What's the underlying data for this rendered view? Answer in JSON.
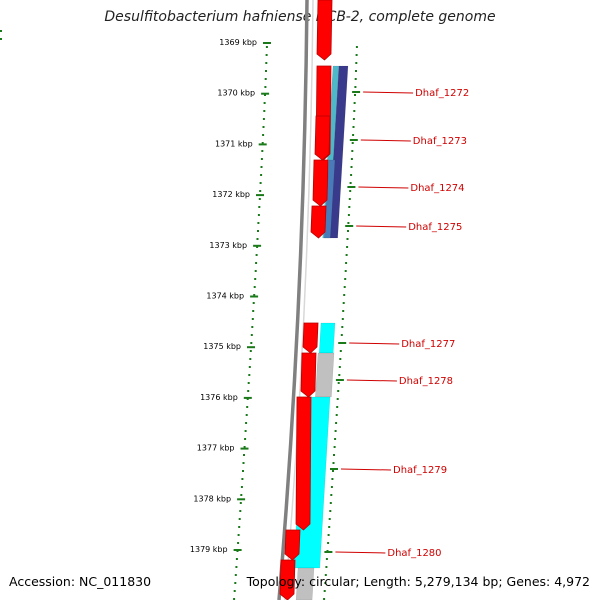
{
  "title": "Desulfitobacterium hafniense DCB-2, complete genome",
  "accession_text": "Accession: NC_011830",
  "summary_text": "Topology: circular; Length: 5,279,134 bp; Genes: 4,972",
  "ruler": {
    "unit": "kbp",
    "ticks": [
      "1369 kbp",
      "1370 kbp",
      "1371 kbp",
      "1372 kbp",
      "1373 kbp",
      "1374 kbp",
      "1375 kbp",
      "1376 kbp",
      "1377 kbp",
      "1378 kbp",
      "1379 kbp"
    ]
  },
  "colors": {
    "forward_cds": "#ff0000",
    "forward_cds_edge": "#b80000",
    "backbone": "#808080",
    "tick": "#1a7a1a",
    "label": "#d00000",
    "feature_cyan": "#00ffff",
    "feature_grey": "#c0c0c0",
    "feature_navy": "#3a3a8c",
    "feature_steel": "#4a7ab8",
    "feature_teal": "#4fb8c8"
  },
  "genes": [
    {
      "name": "Dhaf_1272"
    },
    {
      "name": "Dhaf_1273"
    },
    {
      "name": "Dhaf_1274"
    },
    {
      "name": "Dhaf_1275"
    },
    {
      "name": "Dhaf_1277"
    },
    {
      "name": "Dhaf_1278"
    },
    {
      "name": "Dhaf_1279"
    },
    {
      "name": "Dhaf_1280"
    }
  ]
}
